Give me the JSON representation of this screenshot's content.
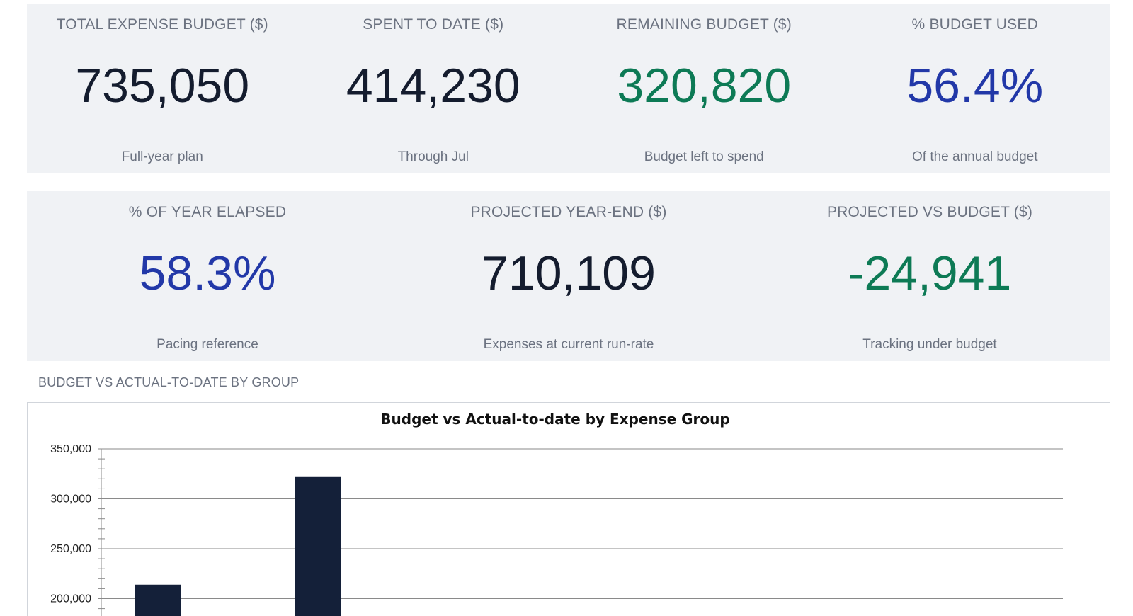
{
  "kpis_row1": [
    {
      "label": "TOTAL EXPENSE BUDGET ($)",
      "value": "735,050",
      "sub": "Full-year plan",
      "color": "#141c2e"
    },
    {
      "label": "SPENT TO DATE ($)",
      "value": "414,230",
      "sub": "Through Jul",
      "color": "#141c2e"
    },
    {
      "label": "REMAINING BUDGET ($)",
      "value": "320,820",
      "sub": "Budget left to spend",
      "color": "#0d7a55"
    },
    {
      "label": "% BUDGET USED",
      "value": "56.4%",
      "sub": "Of the annual budget",
      "color": "#2238a8"
    }
  ],
  "kpis_row2": [
    {
      "label": "% OF YEAR ELAPSED",
      "value": "58.3%",
      "sub": "Pacing reference",
      "color": "#2238a8"
    },
    {
      "label": "PROJECTED YEAR-END ($)",
      "value": "710,109",
      "sub": "Expenses at current run-rate",
      "color": "#141c2e"
    },
    {
      "label": "PROJECTED VS BUDGET ($)",
      "value": "-24,941",
      "sub": "Tracking under budget",
      "color": "#0d7a55"
    }
  ],
  "section_title": "BUDGET VS ACTUAL-TO-DATE BY GROUP",
  "chart_data": {
    "type": "bar",
    "title": "Budget vs Actual-to-date by Expense Group",
    "xlabel": "",
    "ylabel": "",
    "y_ticks": [
      "350,000",
      "300,000",
      "250,000",
      "200,000"
    ],
    "ylim": [
      200000,
      350000
    ],
    "grid": true,
    "bar_color": "#142039",
    "values": [
      214000,
      322500
    ]
  }
}
